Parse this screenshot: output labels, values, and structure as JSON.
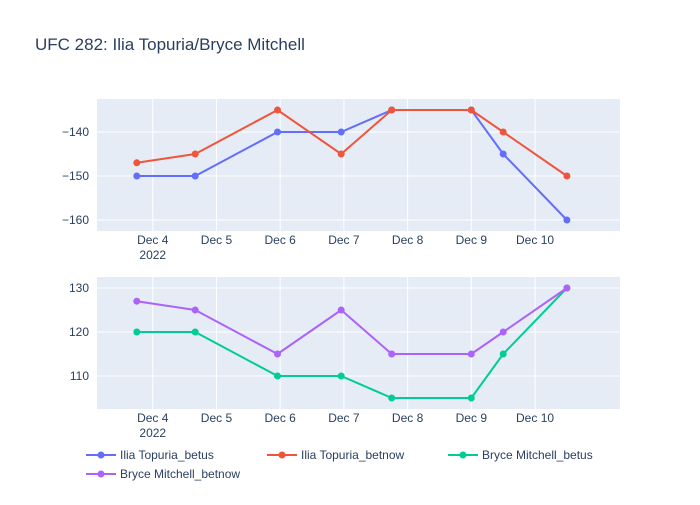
{
  "chart_data": {
    "type": "line",
    "title": "UFC 282: Ilia Topuria/Bryce Mitchell",
    "x_tick_labels": [
      {
        "date": "2022-12-04",
        "line1": "Dec 4",
        "line2": "2022"
      },
      {
        "date": "2022-12-05",
        "line1": "Dec 5",
        "line2": ""
      },
      {
        "date": "2022-12-06",
        "line1": "Dec 6",
        "line2": ""
      },
      {
        "date": "2022-12-07",
        "line1": "Dec 7",
        "line2": ""
      },
      {
        "date": "2022-12-08",
        "line1": "Dec 8",
        "line2": ""
      },
      {
        "date": "2022-12-09",
        "line1": "Dec 9",
        "line2": ""
      },
      {
        "date": "2022-12-10",
        "line1": "Dec 10",
        "line2": ""
      }
    ],
    "xlim": [
      "2022-12-03T03:00",
      "2022-12-11T08:00"
    ],
    "x": [
      "2022-12-03T18:00",
      "2022-12-04T16:00",
      "2022-12-05T23:00",
      "2022-12-06T23:00",
      "2022-12-07T18:00",
      "2022-12-09T00:00",
      "2022-12-09T12:00",
      "2022-12-10T12:00"
    ],
    "subplots": [
      {
        "id": "top",
        "ylim": [
          -162.5,
          -132.5
        ],
        "yticks": [
          -160,
          -150,
          -140
        ],
        "ytick_labels": [
          "−160",
          "−150",
          "−140"
        ],
        "series": [
          {
            "name": "Ilia Topuria_betus",
            "color": "#636efa",
            "values": [
              -150,
              -150,
              -140,
              -140,
              -135,
              -135,
              -145,
              -160
            ]
          },
          {
            "name": "Ilia Topuria_betnow",
            "color": "#EF553B",
            "values": [
              -147,
              -145,
              -135,
              -145,
              -135,
              -135,
              -140,
              -150
            ]
          }
        ]
      },
      {
        "id": "bottom",
        "ylim": [
          102.5,
          132.5
        ],
        "yticks": [
          110,
          120,
          130
        ],
        "ytick_labels": [
          "110",
          "120",
          "130"
        ],
        "series": [
          {
            "name": "Bryce Mitchell_betus",
            "color": "#00cc96",
            "values": [
              120,
              120,
              110,
              110,
              105,
              105,
              115,
              130
            ]
          },
          {
            "name": "Bryce Mitchell_betnow",
            "color": "#ab63fa",
            "values": [
              127,
              125,
              115,
              125,
              115,
              115,
              120,
              130
            ]
          }
        ]
      }
    ],
    "legend": {
      "position": "bottom",
      "orientation": "horizontal",
      "items": [
        {
          "name": "Ilia Topuria_betus",
          "color": "#636efa"
        },
        {
          "name": "Ilia Topuria_betnow",
          "color": "#EF553B"
        },
        {
          "name": "Bryce Mitchell_betus",
          "color": "#00cc96"
        },
        {
          "name": "Bryce Mitchell_betnow",
          "color": "#ab63fa"
        }
      ]
    },
    "grid": true,
    "plot_bg": "#e5ecf6",
    "grid_color": "#ffffff",
    "text_color": "#2a3f5f"
  }
}
